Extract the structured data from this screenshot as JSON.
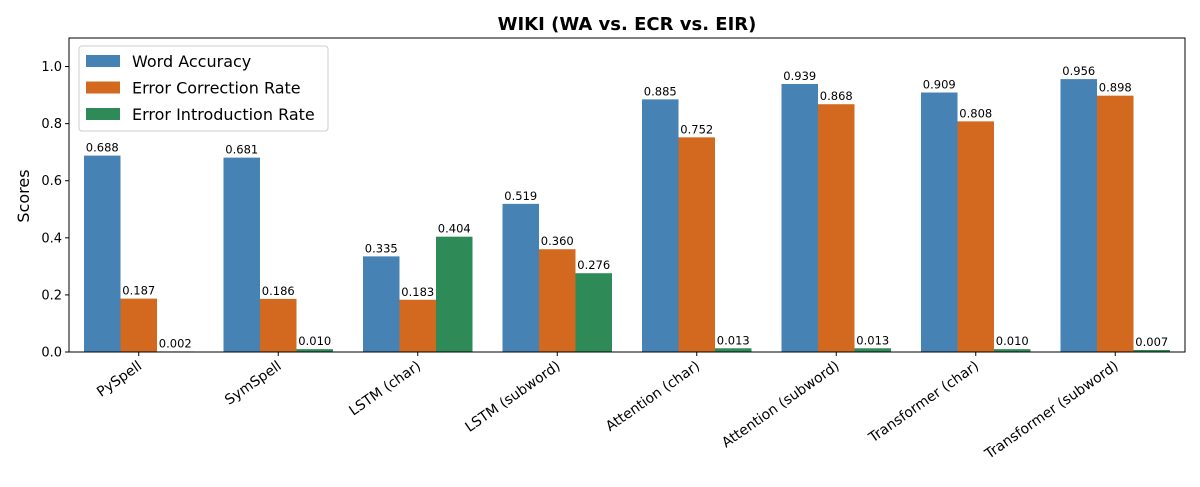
{
  "chart_data": {
    "type": "bar",
    "title": "WIKI (WA vs. ECR vs. EIR)",
    "xlabel": "",
    "ylabel": "Scores",
    "ylim": [
      0,
      1.1
    ],
    "yticks": [
      "0.0",
      "0.2",
      "0.4",
      "0.6",
      "0.8",
      "1.0"
    ],
    "legend_position": "top-left",
    "grid": false,
    "categories": [
      "PySpell",
      "SymSpell",
      "LSTM (char)",
      "LSTM (subword)",
      "Attention (char)",
      "Attention (subword)",
      "Transformer (char)",
      "Transformer (subword)"
    ],
    "series": [
      {
        "name": "Word Accuracy",
        "color": "#4682b4",
        "values": [
          0.688,
          0.681,
          0.335,
          0.519,
          0.885,
          0.939,
          0.909,
          0.956
        ],
        "labels": [
          "0.688",
          "0.681",
          "0.335",
          "0.519",
          "0.885",
          "0.939",
          "0.909",
          "0.956"
        ]
      },
      {
        "name": "Error Correction Rate",
        "color": "#d2691e",
        "values": [
          0.187,
          0.186,
          0.183,
          0.36,
          0.752,
          0.868,
          0.808,
          0.898
        ],
        "labels": [
          "0.187",
          "0.186",
          "0.183",
          "0.360",
          "0.752",
          "0.868",
          "0.808",
          "0.898"
        ]
      },
      {
        "name": "Error Introduction Rate",
        "color": "#2e8b57",
        "values": [
          0.002,
          0.01,
          0.404,
          0.276,
          0.013,
          0.013,
          0.01,
          0.007
        ],
        "labels": [
          "0.002",
          "0.010",
          "0.404",
          "0.276",
          "0.013",
          "0.013",
          "0.010",
          "0.007"
        ]
      }
    ]
  }
}
